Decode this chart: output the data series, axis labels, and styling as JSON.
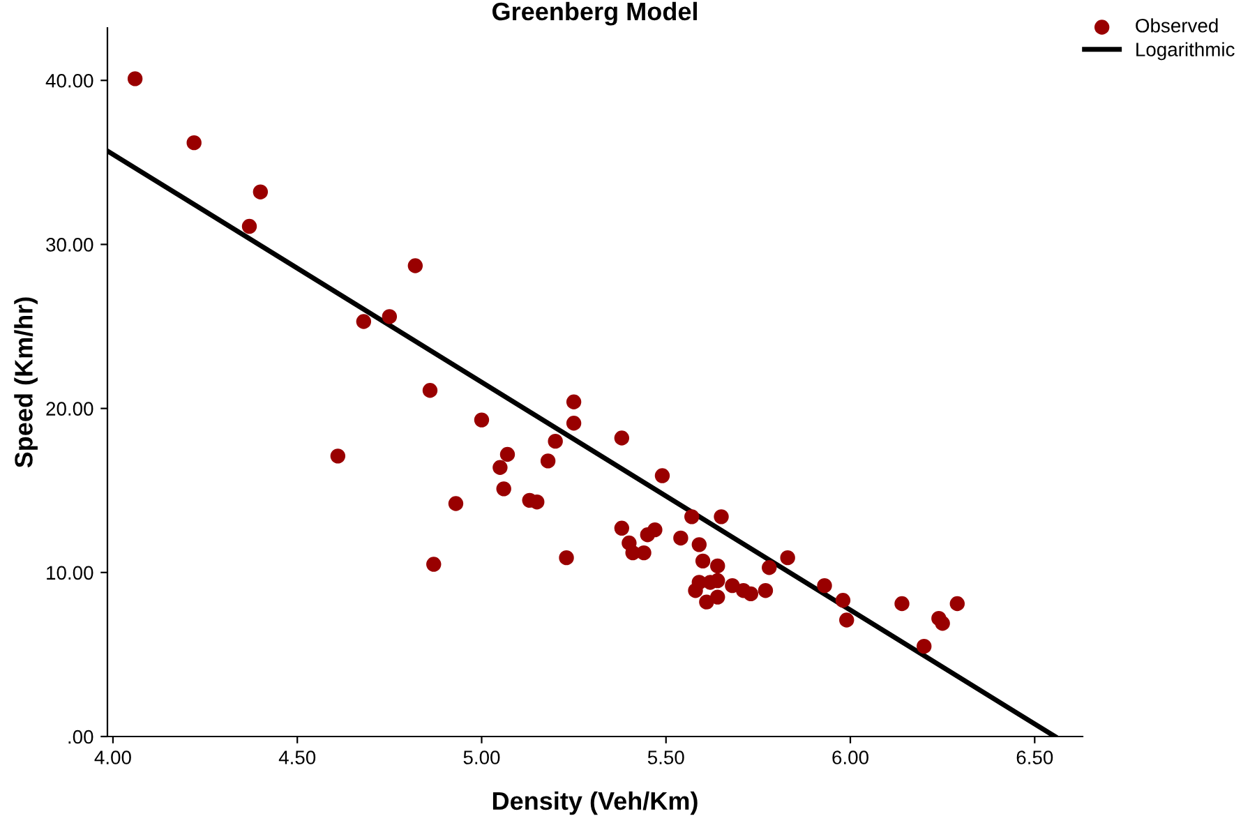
{
  "chart_data": {
    "type": "scatter",
    "title": "Greenberg Model",
    "xlabel": "Density (Veh/Km)",
    "ylabel": "Speed (Km/hr)",
    "xlim": [
      3.985,
      6.63
    ],
    "ylim": [
      0,
      43.2
    ],
    "xticks": [
      {
        "value": 4,
        "label": "4.00"
      },
      {
        "value": 4.5,
        "label": "4.50"
      },
      {
        "value": 5,
        "label": "5.00"
      },
      {
        "value": 5.5,
        "label": "5.50"
      },
      {
        "value": 6,
        "label": "6.00"
      },
      {
        "value": 6.5,
        "label": "6.50"
      }
    ],
    "yticks": [
      {
        "value": 0,
        "label": ".00"
      },
      {
        "value": 10,
        "label": "10.00"
      },
      {
        "value": 20,
        "label": "20.00"
      },
      {
        "value": 30,
        "label": "30.00"
      },
      {
        "value": 40,
        "label": "40.00"
      }
    ],
    "grid": false,
    "legend": "top right",
    "series": [
      {
        "name": "Observed",
        "marker": "circle",
        "color": "#990000",
        "x": [
          4.06,
          4.22,
          4.4,
          4.37,
          4.82,
          4.75,
          4.68,
          4.61,
          4.86,
          4.87,
          5.0,
          5.07,
          5.05,
          5.06,
          4.93,
          5.13,
          5.15,
          5.18,
          5.2,
          5.23,
          5.25,
          5.25,
          5.38,
          5.49,
          5.38,
          5.4,
          5.41,
          5.44,
          5.45,
          5.47,
          5.54,
          5.57,
          5.65,
          5.59,
          5.6,
          5.64,
          5.58,
          5.59,
          5.61,
          5.62,
          5.64,
          5.64,
          5.68,
          5.71,
          5.73,
          5.77,
          5.78,
          5.83,
          5.93,
          5.98,
          5.99,
          6.14,
          6.2,
          6.24,
          6.25,
          6.29
        ],
        "values": [
          40.1,
          36.2,
          33.2,
          31.1,
          28.7,
          25.6,
          25.3,
          17.1,
          21.1,
          10.5,
          19.3,
          17.2,
          16.4,
          15.1,
          14.2,
          14.4,
          14.3,
          16.8,
          18.0,
          10.9,
          20.4,
          19.1,
          18.2,
          15.9,
          12.7,
          11.8,
          11.2,
          11.2,
          12.3,
          12.6,
          12.1,
          13.4,
          13.4,
          11.7,
          10.7,
          10.4,
          8.9,
          9.4,
          8.2,
          9.4,
          9.5,
          8.5,
          9.2,
          8.9,
          8.7,
          8.9,
          10.3,
          10.9,
          9.2,
          8.3,
          7.1,
          8.1,
          5.5,
          7.2,
          6.9,
          8.1
        ]
      },
      {
        "name": "Logarithmic",
        "type": "line",
        "marker": "none",
        "line_style": "solid",
        "color": "#000000",
        "x": [
          3.985,
          6.555
        ],
        "values": [
          35.7,
          0
        ]
      }
    ]
  }
}
